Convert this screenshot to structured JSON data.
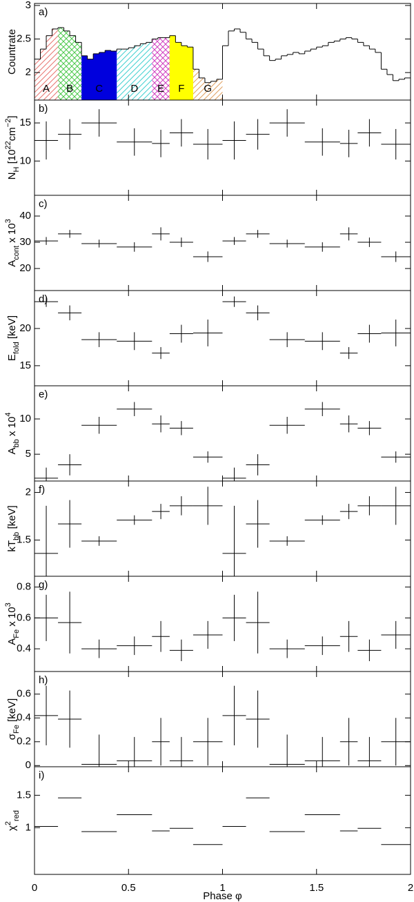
{
  "chart_data": [
    {
      "type": "histogram",
      "label": "a)",
      "ylabel": [
        {
          "text": "Countrate"
        }
      ],
      "bins": [
        0,
        0.03125,
        0.0625,
        0.09375,
        0.125,
        0.15625,
        0.1875,
        0.21875,
        0.25,
        0.28125,
        0.3125,
        0.34375,
        0.375,
        0.40625,
        0.4375,
        0.46875,
        0.5,
        0.53125,
        0.5625,
        0.59375,
        0.625,
        0.65625,
        0.6875,
        0.71875,
        0.75,
        0.78125,
        0.8125,
        0.84375,
        0.875,
        0.90625,
        0.9375,
        0.96875,
        1,
        1.03125,
        1.0625,
        1.09375,
        1.125,
        1.15625,
        1.1875,
        1.21875,
        1.25,
        1.28125,
        1.3125,
        1.34375,
        1.375,
        1.40625,
        1.4375,
        1.46875,
        1.5,
        1.53125,
        1.5625,
        1.59375,
        1.625,
        1.65625,
        1.6875,
        1.71875,
        1.75,
        1.78125,
        1.8125,
        1.84375,
        1.875,
        1.90625,
        1.9375,
        1.96875,
        2
      ],
      "values": [
        2.2,
        2.35,
        2.55,
        2.65,
        2.67,
        2.62,
        2.55,
        2.45,
        2.25,
        2.2,
        2.28,
        2.3,
        2.33,
        2.32,
        2.35,
        2.35,
        2.37,
        2.4,
        2.43,
        2.45,
        2.5,
        2.52,
        2.52,
        2.55,
        2.45,
        2.4,
        2.38,
        2.05,
        1.92,
        1.85,
        1.87,
        1.9,
        2.4,
        2.62,
        2.65,
        2.6,
        2.5,
        2.45,
        2.35,
        2.25,
        2.18,
        2.2,
        2.25,
        2.27,
        2.3,
        2.28,
        2.32,
        2.35,
        2.38,
        2.4,
        2.45,
        2.47,
        2.5,
        2.52,
        2.5,
        2.45,
        2.4,
        2.35,
        2.3,
        2.05,
        1.97,
        1.88,
        1.9,
        1.92
      ],
      "regions": [
        {
          "label": "A",
          "range": [
            0,
            0.125
          ],
          "color": "#e8736f",
          "fill": "hatch"
        },
        {
          "label": "B",
          "range": [
            0.125,
            0.25
          ],
          "color": "#4cc84c",
          "fill": "cross"
        },
        {
          "label": "C",
          "range": [
            0.25,
            0.4375
          ],
          "color": "#0000dd",
          "fill": "solid"
        },
        {
          "label": "D",
          "range": [
            0.4375,
            0.625
          ],
          "color": "#40d0d0",
          "fill": "hatch"
        },
        {
          "label": "E",
          "range": [
            0.625,
            0.71875
          ],
          "color": "#d040c0",
          "fill": "cross"
        },
        {
          "label": "F",
          "range": [
            0.71875,
            0.84375
          ],
          "color": "#ffff00",
          "fill": "solid"
        },
        {
          "label": "G",
          "range": [
            0.84375,
            1
          ],
          "color": "#e0a060",
          "fill": "hatch"
        }
      ],
      "xlim": [
        0,
        2
      ],
      "xticks": [
        0,
        0.5,
        1,
        1.5,
        2
      ],
      "ylim": [
        1.59,
        3.03
      ],
      "yticks": [
        2,
        2.5,
        3
      ]
    },
    {
      "type": "errorbar",
      "label": "b)",
      "ylabel": [
        {
          "text": "N"
        },
        {
          "text": "H",
          "shift": "sub"
        },
        {
          "text": " [10"
        },
        {
          "text": "22",
          "shift": "super"
        },
        {
          "text": "cm"
        },
        {
          "text": "−2",
          "shift": "super"
        },
        {
          "text": "]"
        }
      ],
      "x": [
        0.0625,
        0.1875,
        0.34375,
        0.53125,
        0.671875,
        0.78125,
        0.921875,
        1.0625,
        1.1875,
        1.34375,
        1.53125,
        1.671875,
        1.78125,
        1.921875
      ],
      "xerr": [
        0.0625,
        0.0625,
        0.09375,
        0.09375,
        0.046875,
        0.0625,
        0.078125,
        0.0625,
        0.0625,
        0.09375,
        0.09375,
        0.046875,
        0.0625,
        0.078125
      ],
      "values": [
        12.7,
        13.5,
        15.0,
        12.5,
        12.3,
        13.7,
        12.2,
        12.7,
        13.5,
        15.0,
        12.5,
        12.3,
        13.7,
        12.2
      ],
      "errors": [
        2.5,
        2.0,
        1.8,
        1.8,
        1.8,
        1.8,
        2.0,
        2.5,
        2.0,
        1.8,
        1.8,
        1.8,
        1.8,
        2.0
      ],
      "xlim": [
        0,
        2
      ],
      "xticks": [
        0,
        0.5,
        1,
        1.5,
        2
      ],
      "ylim": [
        5.5,
        18
      ],
      "yticks": [
        10,
        15
      ]
    },
    {
      "type": "errorbar",
      "label": "c)",
      "ylabel": [
        {
          "text": "A"
        },
        {
          "text": "cont",
          "shift": "sub"
        },
        {
          "text": " x 10"
        },
        {
          "text": "3",
          "shift": "super"
        }
      ],
      "x": [
        0.0625,
        0.1875,
        0.34375,
        0.53125,
        0.671875,
        0.78125,
        0.921875,
        1.0625,
        1.1875,
        1.34375,
        1.53125,
        1.671875,
        1.78125,
        1.921875
      ],
      "xerr": [
        0.0625,
        0.0625,
        0.09375,
        0.09375,
        0.046875,
        0.0625,
        0.078125,
        0.0625,
        0.0625,
        0.09375,
        0.09375,
        0.046875,
        0.0625,
        0.078125
      ],
      "values": [
        30.5,
        33.2,
        29.5,
        28.2,
        33.2,
        30.0,
        24.5,
        30.5,
        33.2,
        29.5,
        28.2,
        33.2,
        30.0,
        24.5
      ],
      "errors": [
        1.5,
        1.5,
        1.5,
        1.8,
        2.5,
        1.8,
        2.0,
        1.5,
        1.5,
        1.5,
        1.8,
        2.5,
        1.8,
        2.0
      ],
      "xlim": [
        0,
        2
      ],
      "xticks": [
        0,
        0.5,
        1,
        1.5,
        2
      ],
      "ylim": [
        11.6,
        47.9
      ],
      "yticks": [
        20,
        30,
        40
      ]
    },
    {
      "type": "errorbar",
      "label": "d)",
      "ylabel": [
        {
          "text": "E"
        },
        {
          "text": "fold",
          "shift": "sub"
        },
        {
          "text": " [keV]"
        }
      ],
      "x": [
        0.0625,
        0.1875,
        0.34375,
        0.53125,
        0.671875,
        0.78125,
        0.921875,
        1.0625,
        1.1875,
        1.34375,
        1.53125,
        1.671875,
        1.78125,
        1.921875
      ],
      "xerr": [
        0.0625,
        0.0625,
        0.09375,
        0.09375,
        0.046875,
        0.0625,
        0.078125,
        0.0625,
        0.0625,
        0.09375,
        0.09375,
        0.046875,
        0.0625,
        0.078125
      ],
      "values": [
        23.6,
        22.1,
        18.5,
        18.3,
        16.7,
        19.3,
        19.4,
        23.6,
        22.1,
        18.5,
        18.3,
        16.7,
        19.3,
        19.4
      ],
      "errors": [
        0.7,
        1.0,
        1.0,
        1.2,
        0.8,
        1.2,
        1.8,
        0.7,
        1.0,
        1.0,
        1.2,
        0.8,
        1.2,
        1.8
      ],
      "xlim": [
        0,
        2
      ],
      "xticks": [
        0,
        0.5,
        1,
        1.5,
        2
      ],
      "ylim": [
        12.3,
        25.1
      ],
      "yticks": [
        15,
        20
      ]
    },
    {
      "type": "errorbar",
      "label": "e)",
      "ylabel": [
        {
          "text": "A"
        },
        {
          "text": "bb",
          "shift": "sub"
        },
        {
          "text": " x 10"
        },
        {
          "text": "4",
          "shift": "super"
        }
      ],
      "x": [
        0.0625,
        0.1875,
        0.34375,
        0.53125,
        0.671875,
        0.78125,
        0.921875,
        1.0625,
        1.1875,
        1.34375,
        1.53125,
        1.671875,
        1.78125,
        1.921875
      ],
      "xerr": [
        0.0625,
        0.0625,
        0.09375,
        0.09375,
        0.046875,
        0.0625,
        0.078125,
        0.0625,
        0.0625,
        0.09375,
        0.09375,
        0.046875,
        0.0625,
        0.078125
      ],
      "values": [
        1.6,
        3.5,
        9.1,
        11.4,
        9.3,
        8.7,
        4.6,
        1.6,
        3.5,
        9.1,
        11.4,
        9.3,
        8.7,
        4.6
      ],
      "errors": [
        1.5,
        1.5,
        1.2,
        1.0,
        1.2,
        1.0,
        0.8,
        1.5,
        1.5,
        1.2,
        1.0,
        1.2,
        1.0,
        0.8
      ],
      "xlim": [
        0,
        2
      ],
      "xticks": [
        0,
        0.5,
        1,
        1.5,
        2
      ],
      "ylim": [
        1.2,
        14.7
      ],
      "yticks": [
        5,
        10
      ]
    },
    {
      "type": "errorbar",
      "label": "f)",
      "ylabel": [
        {
          "text": "kT"
        },
        {
          "text": "bb",
          "shift": "sub"
        },
        {
          "text": " [keV]"
        }
      ],
      "x": [
        0.0625,
        0.1875,
        0.34375,
        0.53125,
        0.671875,
        0.78125,
        0.921875,
        1.0625,
        1.1875,
        1.34375,
        1.53125,
        1.671875,
        1.78125,
        1.921875
      ],
      "xerr": [
        0.0625,
        0.0625,
        0.09375,
        0.09375,
        0.046875,
        0.0625,
        0.078125,
        0.0625,
        0.0625,
        0.09375,
        0.09375,
        0.046875,
        0.0625,
        0.078125
      ],
      "values": [
        1.36,
        1.67,
        1.49,
        1.71,
        1.8,
        1.86,
        1.86,
        1.36,
        1.67,
        1.49,
        1.71,
        1.8,
        1.86,
        1.86
      ],
      "errors": [
        0.5,
        0.25,
        0.05,
        0.05,
        0.08,
        0.1,
        0.2,
        0.5,
        0.25,
        0.05,
        0.05,
        0.08,
        0.1,
        0.2
      ],
      "xlim": [
        0,
        2
      ],
      "xticks": [
        0,
        0.5,
        1,
        1.5,
        2
      ],
      "ylim": [
        1.12,
        2.12
      ],
      "yticks": [
        1.5,
        2
      ]
    },
    {
      "type": "errorbar",
      "label": "g)",
      "ylabel": [
        {
          "text": "A"
        },
        {
          "text": "Fe",
          "shift": "sub"
        },
        {
          "text": " x 10"
        },
        {
          "text": "3",
          "shift": "super"
        }
      ],
      "x": [
        0.0625,
        0.1875,
        0.34375,
        0.53125,
        0.671875,
        0.78125,
        0.921875,
        1.0625,
        1.1875,
        1.34375,
        1.53125,
        1.671875,
        1.78125,
        1.921875
      ],
      "xerr": [
        0.0625,
        0.0625,
        0.09375,
        0.09375,
        0.046875,
        0.0625,
        0.078125,
        0.0625,
        0.0625,
        0.09375,
        0.09375,
        0.046875,
        0.0625,
        0.078125
      ],
      "values": [
        0.6,
        0.57,
        0.4,
        0.42,
        0.48,
        0.39,
        0.49,
        0.6,
        0.57,
        0.4,
        0.42,
        0.48,
        0.39,
        0.49
      ],
      "errors": [
        0.15,
        0.2,
        0.06,
        0.06,
        0.1,
        0.07,
        0.09,
        0.15,
        0.2,
        0.06,
        0.06,
        0.1,
        0.07,
        0.09
      ],
      "xlim": [
        0,
        2
      ],
      "xticks": [
        0,
        0.5,
        1,
        1.5,
        2
      ],
      "ylim": [
        0.253,
        0.87
      ],
      "yticks": [
        0.4,
        0.6,
        0.8
      ]
    },
    {
      "type": "errorbar",
      "label": "h)",
      "ylabel": [
        {
          "text": "σ"
        },
        {
          "text": "Fe",
          "shift": "sub"
        },
        {
          "text": " [keV]"
        }
      ],
      "x": [
        0.0625,
        0.1875,
        0.34375,
        0.53125,
        0.671875,
        0.78125,
        0.921875,
        1.0625,
        1.1875,
        1.34375,
        1.53125,
        1.671875,
        1.78125,
        1.921875
      ],
      "xerr": [
        0.0625,
        0.0625,
        0.09375,
        0.09375,
        0.046875,
        0.0625,
        0.078125,
        0.0625,
        0.0625,
        0.09375,
        0.09375,
        0.046875,
        0.0625,
        0.078125
      ],
      "values": [
        0.42,
        0.39,
        0.01,
        0.04,
        0.2,
        0.04,
        0.2,
        0.42,
        0.39,
        0.01,
        0.04,
        0.2,
        0.04,
        0.2
      ],
      "errors": [
        0.25,
        0.24,
        0.25,
        0.2,
        0.2,
        0.2,
        0.2,
        0.25,
        0.24,
        0.25,
        0.2,
        0.2,
        0.2,
        0.2
      ],
      "xlim": [
        0,
        2
      ],
      "xticks": [
        0,
        0.5,
        1,
        1.5,
        2
      ],
      "ylim": [
        -0.01,
        0.79
      ],
      "yticks": [
        0,
        0.2,
        0.4,
        0.6
      ]
    },
    {
      "type": "errorbar",
      "label": "i)",
      "ylabel": [
        {
          "text": "χ"
        },
        {
          "text": "2",
          "shift": "super"
        },
        {
          "text": "red",
          "shift": "sub"
        }
      ],
      "x": [
        0.0625,
        0.1875,
        0.34375,
        0.53125,
        0.671875,
        0.78125,
        0.921875,
        1.0625,
        1.1875,
        1.34375,
        1.53125,
        1.671875,
        1.78125,
        1.921875
      ],
      "xerr": [
        0.0625,
        0.0625,
        0.09375,
        0.09375,
        0.046875,
        0.0625,
        0.078125,
        0.0625,
        0.0625,
        0.09375,
        0.09375,
        0.046875,
        0.0625,
        0.078125
      ],
      "values": [
        1.02,
        1.46,
        0.94,
        1.2,
        0.95,
        0.99,
        0.74,
        1.02,
        1.46,
        0.94,
        1.2,
        0.95,
        0.99,
        0.74
      ],
      "xlim": [
        0,
        2
      ],
      "xticks": [
        0,
        0.5,
        1,
        1.5,
        2
      ],
      "ylim": [
        0.28,
        1.94
      ],
      "yticks": [
        1,
        1.5
      ],
      "xlabel": "Phase φ"
    }
  ]
}
